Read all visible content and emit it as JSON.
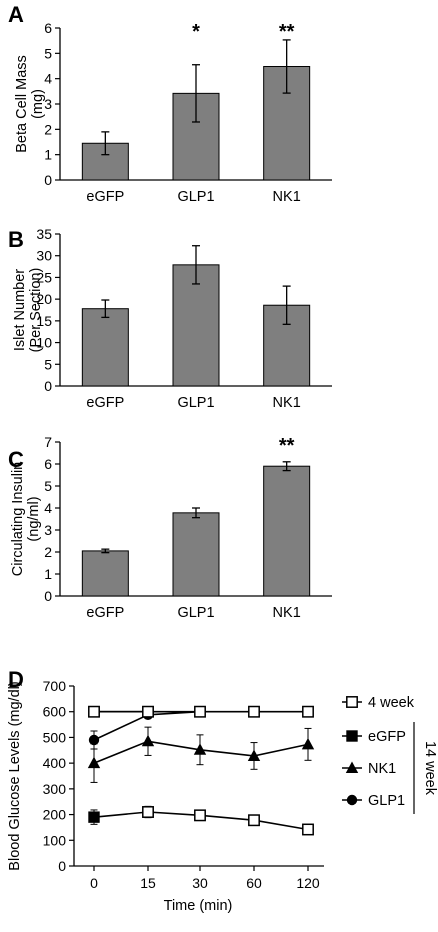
{
  "chart_data": [
    {
      "panel": "A",
      "type": "bar",
      "ylabel_lines": [
        "Beta Cell Mass",
        "(mg)"
      ],
      "categories": [
        "eGFP",
        "GLP1",
        "NK1"
      ],
      "values": [
        1.45,
        3.42,
        4.48
      ],
      "errors": [
        0.45,
        1.13,
        1.05
      ],
      "annotations": [
        "",
        "*",
        "**"
      ],
      "ylim": [
        0,
        6
      ],
      "yticks": [
        0,
        1,
        2,
        3,
        4,
        5,
        6
      ],
      "bar_color": "#7f7f7f"
    },
    {
      "panel": "B",
      "type": "bar",
      "ylabel_lines": [
        "Islet Number",
        "(Per Section)"
      ],
      "categories": [
        "eGFP",
        "GLP1",
        "NK1"
      ],
      "values": [
        17.8,
        27.9,
        18.6
      ],
      "errors": [
        2.0,
        4.4,
        4.4
      ],
      "annotations": [
        "",
        "",
        ""
      ],
      "ylim": [
        0,
        35
      ],
      "yticks": [
        0,
        5,
        10,
        15,
        20,
        25,
        30,
        35
      ],
      "bar_color": "#7f7f7f"
    },
    {
      "panel": "C",
      "type": "bar",
      "ylabel_lines": [
        "Circulating Insulin",
        "(ng/ml)"
      ],
      "categories": [
        "eGFP",
        "GLP1",
        "NK1"
      ],
      "values": [
        2.05,
        3.78,
        5.9
      ],
      "errors": [
        0.08,
        0.22,
        0.2
      ],
      "annotations": [
        "",
        "",
        "**"
      ],
      "ylim": [
        0,
        7
      ],
      "yticks": [
        0,
        1,
        2,
        3,
        4,
        5,
        6,
        7
      ],
      "bar_color": "#7f7f7f"
    },
    {
      "panel": "D",
      "type": "line",
      "ylabel": "Blood Glucose Levels (mg/dl)",
      "xlabel": "Time (min)",
      "categories": [
        "0",
        "15",
        "30",
        "60",
        "120"
      ],
      "ylim": [
        0,
        700
      ],
      "yticks": [
        0,
        100,
        200,
        300,
        400,
        500,
        600,
        700
      ],
      "series": [
        {
          "name": "4 week",
          "marker": "open-square",
          "x": [
            0,
            1,
            2,
            3,
            4
          ],
          "values": [
            600,
            600,
            600,
            600,
            600
          ],
          "errors": [
            0,
            0,
            0,
            0,
            0
          ]
        },
        {
          "name": "eGFP",
          "marker": "filled-square",
          "x": [
            0,
            1
          ],
          "values": [
            600,
            600
          ],
          "errors": [
            0,
            0
          ]
        },
        {
          "name": "NK1",
          "marker": "filled-triangle",
          "x": [
            0,
            1,
            2,
            3,
            4
          ],
          "values": [
            400,
            485,
            452,
            428,
            473
          ],
          "errors": [
            75,
            55,
            58,
            52,
            62
          ]
        },
        {
          "name": "GLP1",
          "marker": "filled-circle",
          "x": [
            0,
            1,
            2
          ],
          "values": [
            490,
            588,
            600
          ],
          "errors": [
            35,
            10,
            0
          ]
        },
        {
          "name": "",
          "marker": "filled-square",
          "x": [
            0,
            1
          ],
          "values": [
            190,
            210
          ],
          "errors": [
            28,
            22
          ]
        },
        {
          "name": "",
          "marker": "open-square",
          "x": [
            1,
            2,
            3,
            4
          ],
          "values": [
            210,
            197,
            178,
            142
          ],
          "errors": [
            0,
            0,
            0,
            0
          ]
        }
      ],
      "legend_entries": [
        "4 week",
        "eGFP",
        "NK1",
        "GLP1"
      ],
      "legend_group_label": "14 week",
      "legend_placement": "right"
    }
  ],
  "panel_labels": [
    "A",
    "B",
    "C",
    "D"
  ]
}
